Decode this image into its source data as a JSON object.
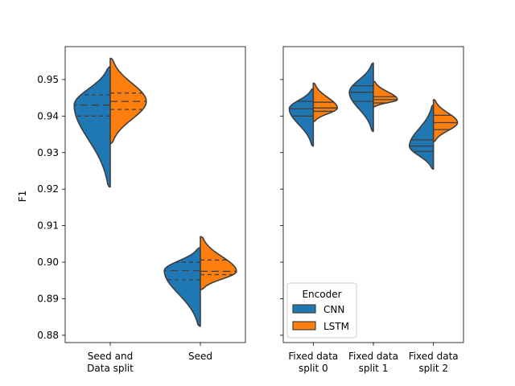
{
  "chart_data": {
    "type": "violin",
    "ylabel": "F1",
    "ylim": [
      0.878,
      0.959
    ],
    "yticks": [
      0.88,
      0.89,
      0.9,
      0.91,
      0.92,
      0.93,
      0.94,
      0.95
    ],
    "ytick_labels": [
      "0.88",
      "0.89",
      "0.90",
      "0.91",
      "0.92",
      "0.93",
      "0.94",
      "0.95"
    ],
    "split": true,
    "hue_colors": {
      "CNN": "#1f77b4",
      "LSTM": "#ff7f0e"
    },
    "legend": {
      "title": "Encoder",
      "entries": [
        "CNN",
        "LSTM"
      ],
      "position": "lower-left",
      "panel": 1
    },
    "panels": [
      {
        "categories": [
          {
            "label": [
              "Seed and",
              "Data split"
            ],
            "CNN": {
              "min": 0.9206,
              "max": 0.9535,
              "q1": 0.94,
              "median": 0.943,
              "q3": 0.9458
            },
            "LSTM": {
              "min": 0.9325,
              "max": 0.9558,
              "q1": 0.9418,
              "median": 0.944,
              "q3": 0.9463
            }
          },
          {
            "label": [
              "Seed"
            ],
            "CNN": {
              "min": 0.8825,
              "max": 0.904,
              "q1": 0.8952,
              "median": 0.8977,
              "q3": 0.9
            },
            "LSTM": {
              "min": 0.8925,
              "max": 0.907,
              "q1": 0.8966,
              "median": 0.8975,
              "q3": 0.9006
            }
          }
        ]
      },
      {
        "categories": [
          {
            "label": [
              "Fixed data",
              "split 0"
            ],
            "CNN": {
              "min": 0.9318,
              "max": 0.9475,
              "q1": 0.94,
              "median": 0.942,
              "q3": 0.944
            },
            "LSTM": {
              "min": 0.9385,
              "max": 0.949,
              "q1": 0.9413,
              "median": 0.9422,
              "q3": 0.9438
            }
          },
          {
            "label": [
              "Fixed data",
              "split 1"
            ],
            "CNN": {
              "min": 0.9358,
              "max": 0.9545,
              "q1": 0.944,
              "median": 0.9465,
              "q3": 0.9483
            },
            "LSTM": {
              "min": 0.9425,
              "max": 0.9495,
              "q1": 0.9436,
              "median": 0.9445,
              "q3": 0.9453
            }
          },
          {
            "label": [
              "Fixed data",
              "split 2"
            ],
            "CNN": {
              "min": 0.9255,
              "max": 0.943,
              "q1": 0.9303,
              "median": 0.9318,
              "q3": 0.9335
            },
            "LSTM": {
              "min": 0.933,
              "max": 0.9445,
              "q1": 0.9363,
              "median": 0.9382,
              "q3": 0.9402
            }
          }
        ]
      }
    ]
  }
}
